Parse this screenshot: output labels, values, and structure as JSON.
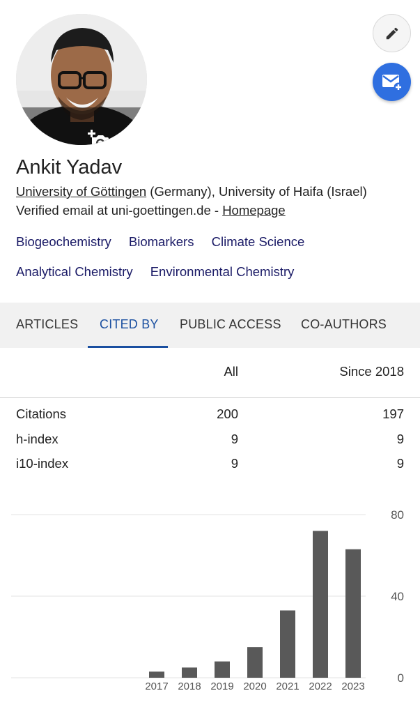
{
  "profile": {
    "name": "Ankit Yadav",
    "affiliation_link": "University of Göttingen",
    "affiliation_rest": " (Germany), University of Haifa (Israel)",
    "email_text": "Verified email at uni-goettingen.de - ",
    "homepage_label": "Homepage"
  },
  "actions": {
    "edit_icon": "pencil-icon",
    "mail_icon": "mail-plus-icon",
    "camera_icon": "add-photo-icon"
  },
  "interests": [
    [
      "Biogeochemistry",
      "Biomarkers",
      "Climate Science"
    ],
    [
      "Analytical Chemistry",
      "Environmental Chemistry"
    ]
  ],
  "tabs": [
    "ARTICLES",
    "CITED BY",
    "PUBLIC ACCESS",
    "CO-AUTHORS"
  ],
  "active_tab": "CITED BY",
  "stats": {
    "col_all": "All",
    "col_since": "Since 2018",
    "rows": [
      {
        "label": "Citations",
        "all": "200",
        "since": "197"
      },
      {
        "label": "h-index",
        "all": "9",
        "since": "9"
      },
      {
        "label": "i10-index",
        "all": "9",
        "since": "9"
      }
    ]
  },
  "colors": {
    "accent": "#1a4fa0",
    "fab_mail": "#2f6fe0",
    "bar": "#595959",
    "tab_bg": "#f1f1f1"
  },
  "chart_data": {
    "type": "bar",
    "categories": [
      "2017",
      "2018",
      "2019",
      "2020",
      "2021",
      "2022",
      "2023"
    ],
    "values": [
      3,
      5,
      8,
      15,
      33,
      72,
      63
    ],
    "ylim": [
      0,
      80
    ],
    "yticks": [
      0,
      40,
      80
    ],
    "grid": true,
    "title": "",
    "xlabel": "",
    "ylabel": ""
  }
}
